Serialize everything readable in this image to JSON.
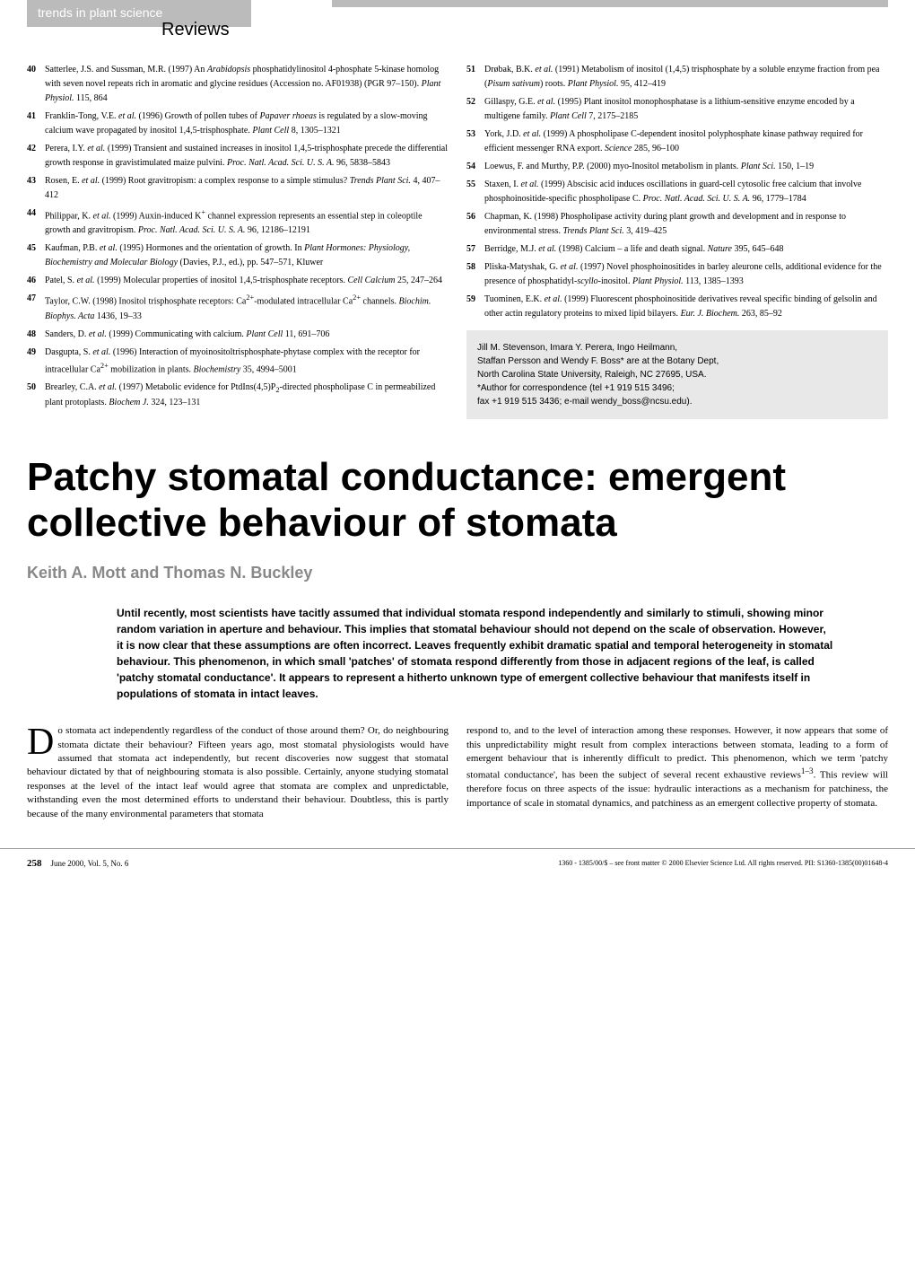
{
  "header": {
    "tab_text": "trends in plant science",
    "section_label": "Reviews"
  },
  "references_left": [
    {
      "num": "40",
      "text": "Satterlee, J.S. and Sussman, M.R. (1997) An <em>Arabidopsis</em> phosphatidylinositol 4-phosphate 5-kinase homolog with seven novel repeats rich in aromatic and glycine residues (Accession no. AF01938) (PGR 97–150). <em>Plant Physiol.</em> 115, 864"
    },
    {
      "num": "41",
      "text": "Franklin-Tong, V.E. <em>et al.</em> (1996) Growth of pollen tubes of <em>Papaver rhoeas</em> is regulated by a slow-moving calcium wave propagated by inositol 1,4,5-trisphosphate. <em>Plant Cell</em> 8, 1305–1321"
    },
    {
      "num": "42",
      "text": "Perera, I.Y. <em>et al.</em> (1999) Transient and sustained increases in inositol 1,4,5-trisphosphate precede the differential growth response in gravistimulated maize pulvini. <em>Proc. Natl. Acad. Sci. U. S. A.</em> 96, 5838–5843"
    },
    {
      "num": "43",
      "text": "Rosen, E. <em>et al.</em> (1999) Root gravitropism: a complex response to a simple stimulus? <em>Trends Plant Sci.</em> 4, 407–412"
    },
    {
      "num": "44",
      "text": "Philippar, K. <em>et al.</em> (1999) Auxin-induced K<sup>+</sup> channel expression represents an essential step in coleoptile growth and gravitropism. <em>Proc. Natl. Acad. Sci. U. S. A.</em> 96, 12186–12191"
    },
    {
      "num": "45",
      "text": "Kaufman, P.B. <em>et al.</em> (1995) Hormones and the orientation of growth. In <em>Plant Hormones: Physiology, Biochemistry and Molecular Biology</em> (Davies, P.J., ed.), pp. 547–571, Kluwer"
    },
    {
      "num": "46",
      "text": "Patel, S. <em>et al.</em> (1999) Molecular properties of inositol 1,4,5-trisphosphate receptors. <em>Cell Calcium</em> 25, 247–264"
    },
    {
      "num": "47",
      "text": "Taylor, C.W. (1998) Inositol trisphosphate receptors: Ca<sup>2+</sup>-modulated intracellular Ca<sup>2+</sup> channels. <em>Biochim. Biophys. Acta</em> 1436, 19–33"
    },
    {
      "num": "48",
      "text": "Sanders, D. <em>et al.</em> (1999) Communicating with calcium. <em>Plant Cell</em> 11, 691–706"
    },
    {
      "num": "49",
      "text": "Dasgupta, S. <em>et al.</em> (1996) Interaction of myoinositoltrisphosphate-phytase complex with the receptor for intracellular Ca<sup>2+</sup> mobilization in plants. <em>Biochemistry</em> 35, 4994–5001"
    },
    {
      "num": "50",
      "text": "Brearley, C.A. <em>et al.</em> (1997) Metabolic evidence for PtdIns(4,5)P<sub>2</sub>-directed phospholipase C in permeabilized plant protoplasts. <em>Biochem J.</em> 324, 123–131"
    }
  ],
  "references_right": [
    {
      "num": "51",
      "text": "Drøbak, B.K. <em>et al.</em> (1991) Metabolism of inositol (1,4,5) trisphosphate by a soluble enzyme fraction from pea (<em>Pisum sativum</em>) roots. <em>Plant Physiol.</em> 95, 412–419"
    },
    {
      "num": "52",
      "text": "Gillaspy, G.E. <em>et al.</em> (1995) Plant inositol monophosphatase is a lithium-sensitive enzyme encoded by a multigene family. <em>Plant Cell</em> 7, 2175–2185"
    },
    {
      "num": "53",
      "text": "York, J.D. <em>et al.</em> (1999) A phospholipase C-dependent inositol polyphosphate kinase pathway required for efficient messenger RNA export. <em>Science</em> 285, 96–100"
    },
    {
      "num": "54",
      "text": "Loewus, F. and Murthy, P.P. (2000) myo-Inositol metabolism in plants. <em>Plant Sci.</em> 150, 1–19"
    },
    {
      "num": "55",
      "text": "Staxen, I. <em>et al.</em> (1999) Abscisic acid induces oscillations in guard-cell cytosolic free calcium that involve phosphoinositide-specific phospholipase C. <em>Proc. Natl. Acad. Sci. U. S. A.</em> 96, 1779–1784"
    },
    {
      "num": "56",
      "text": "Chapman, K. (1998) Phospholipase activity during plant growth and development and in response to environmental stress. <em>Trends Plant Sci.</em> 3, 419–425"
    },
    {
      "num": "57",
      "text": "Berridge, M.J. <em>et al.</em> (1998) Calcium – a life and death signal. <em>Nature</em> 395, 645–648"
    },
    {
      "num": "58",
      "text": "Pliska-Matyshak, G. <em>et al.</em> (1997) Novel phosphoinositides in barley aleurone cells, additional evidence for the presence of phosphatidyl-<em>scyllo</em>-inositol. <em>Plant Physiol.</em> 113, 1385–1393"
    },
    {
      "num": "59",
      "text": "Tuominen, E.K. <em>et al.</em> (1999) Fluorescent phosphoinositide derivatives reveal specific binding of gelsolin and other actin regulatory proteins to mixed lipid bilayers. <em>Eur. J. Biochem.</em> 263, 85–92"
    }
  ],
  "author_box": {
    "line1": "Jill M. Stevenson, Imara Y. Perera, Ingo Heilmann,",
    "line2": "Staffan Persson and Wendy F. Boss* are at the Botany Dept,",
    "line3": "North Carolina State University, Raleigh, NC 27695, USA.",
    "line4": "*Author for correspondence (tel +1 919 515 3496;",
    "line5": "fax +1 919 515 3436; e-mail wendy_boss@ncsu.edu)."
  },
  "article": {
    "title": "Patchy stomatal conductance: emergent collective behaviour of stomata",
    "authors": "Keith A. Mott and Thomas N. Buckley",
    "abstract": "Until recently, most scientists have tacitly assumed that individual stomata respond independently and similarly to stimuli, showing minor random variation in aperture and behaviour. This implies that stomatal behaviour should not depend on the scale of observation. However, it is now clear that these assumptions are often incorrect. Leaves frequently exhibit dramatic spatial and temporal heterogeneity in stomatal behaviour. This phenomenon, in which small 'patches' of stomata respond differently from those in adjacent regions of the leaf, is called 'patchy stomatal conductance'. It appears to represent a hitherto unknown type of emergent collective behaviour that manifests itself in populations of stomata in intact leaves.",
    "dropcap": "D",
    "body_left": "o stomata act independently regardless of the conduct of those around them? Or, do neighbouring stomata dictate their behaviour? Fifteen years ago, most stomatal physiologists would have assumed that stomata act independently, but recent discoveries now suggest that stomatal behaviour dictated by that of neighbouring stomata is also possible. Certainly, anyone studying stomatal responses at the level of the intact leaf would agree that stomata are complex and unpredictable, withstanding even the most determined efforts to understand their behaviour. Doubtless, this is partly because of the many environmental parameters that stomata",
    "body_right": "respond to, and to the level of interaction among these responses. However, it now appears that some of this unpredictability might result from complex interactions between stomata, leading to a form of emergent behaviour that is inherently difficult to predict. This phenomenon, which we term 'patchy stomatal conductance', has been the subject of several recent exhaustive reviews<sup>1–3</sup>. This review will therefore focus on three aspects of the issue: hydraulic interactions as a mechanism for patchiness, the importance of scale in stomatal dynamics, and patchiness as an emergent collective property of stomata."
  },
  "footer": {
    "page_number": "258",
    "date": "June 2000, Vol. 5, No. 6",
    "copyright": "1360 - 1385/00/$ – see front matter © 2000 Elsevier Science Ltd. All rights reserved.  PII: S1360-1385(00)01648-4"
  },
  "colors": {
    "header_tab_bg": "#bbbbbb",
    "header_tab_text": "#ffffff",
    "author_box_bg": "#e8e8e8",
    "authors_gray": "#888888",
    "body_text": "#000000"
  }
}
